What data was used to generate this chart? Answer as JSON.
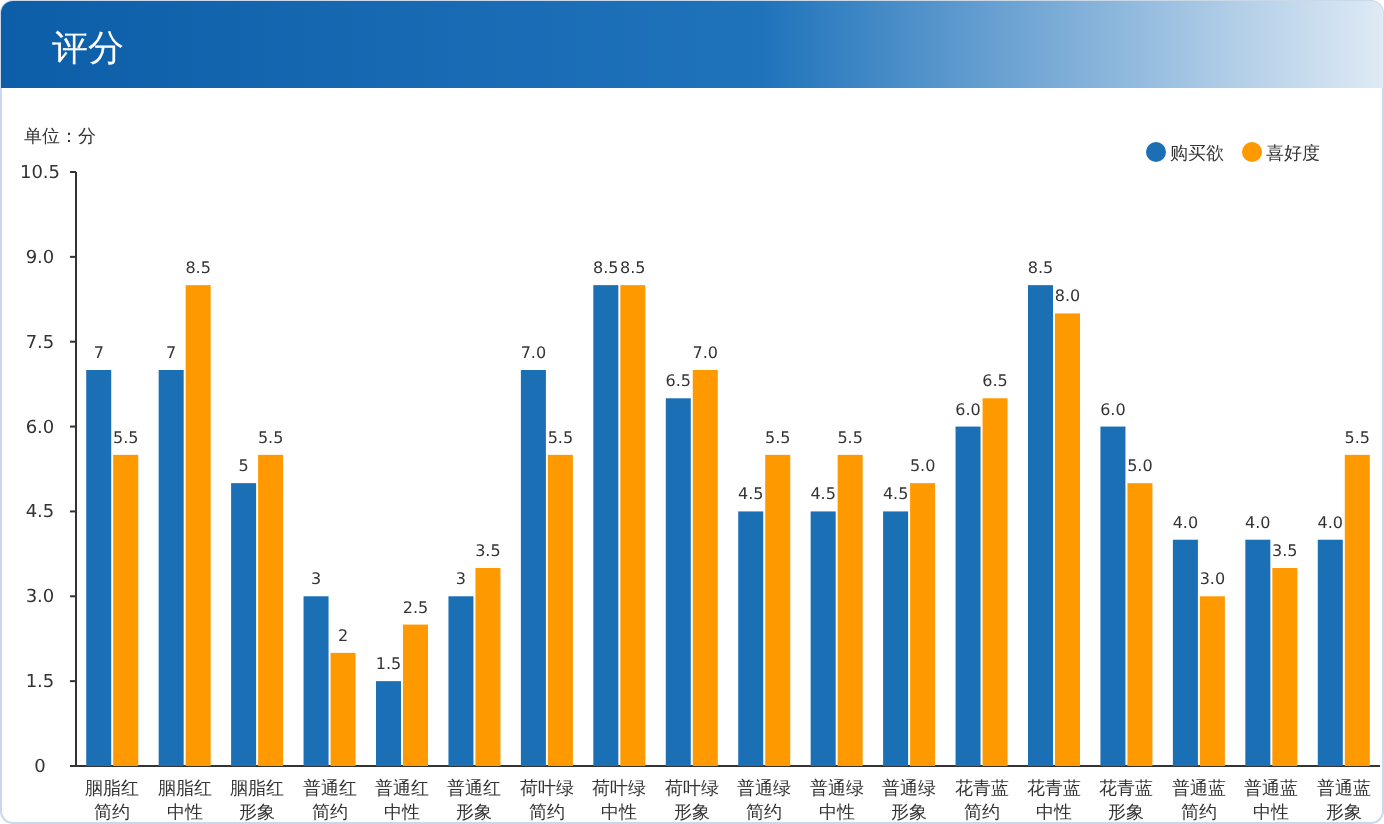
{
  "chart_data": {
    "type": "bar",
    "title": "评分",
    "ylabel": "单位：分",
    "categories": [
      "胭脂红简约",
      "胭脂红中性",
      "胭脂红形象",
      "普通红简约",
      "普通红中性",
      "普通红形象",
      "荷叶绿简约",
      "荷叶绿中性",
      "荷叶绿形象",
      "普通绿简约",
      "普通绿中性",
      "普通绿形象",
      "花青蓝简约",
      "花青蓝中性",
      "花青蓝形象",
      "普通蓝简约",
      "普通蓝中性",
      "普通蓝形象"
    ],
    "series": [
      {
        "name": "购买欲",
        "color": "#1a6fb5",
        "values": [
          7,
          7,
          5,
          3,
          1.5,
          3,
          7.0,
          8.5,
          6.5,
          4.5,
          4.5,
          4.5,
          6.0,
          8.5,
          6.0,
          4.0,
          4.0,
          4.0
        ],
        "value_labels": [
          "7",
          "7",
          "5",
          "3",
          "1.5",
          "3",
          "7.0",
          "8.5",
          "6.5",
          "4.5",
          "4.5",
          "4.5",
          "6.0",
          "8.5",
          "6.0",
          "4.0",
          "4.0",
          "4.0"
        ]
      },
      {
        "name": "喜好度",
        "color": "#ff9900",
        "values": [
          5.5,
          8.5,
          5.5,
          2,
          2.5,
          3.5,
          5.5,
          8.5,
          7.0,
          5.5,
          5.5,
          5.0,
          6.5,
          8.0,
          5.0,
          3.0,
          3.5,
          5.5
        ],
        "value_labels": [
          "5.5",
          "8.5",
          "5.5",
          "2",
          "2.5",
          "3.5",
          "5.5",
          "8.5",
          "7.0",
          "5.5",
          "5.5",
          "5.0",
          "6.5",
          "8.0",
          "5.0",
          "3.0",
          "3.5",
          "5.5"
        ]
      }
    ],
    "ylim": [
      0,
      10.5
    ],
    "yticks": [
      0,
      1.5,
      {
        "value": 3,
        "label": "3.0"
      },
      4.5,
      {
        "value": 6,
        "label": "6.0"
      },
      7.5,
      {
        "value": 9,
        "label": "9.0"
      },
      10.5
    ],
    "legend": "top right"
  }
}
